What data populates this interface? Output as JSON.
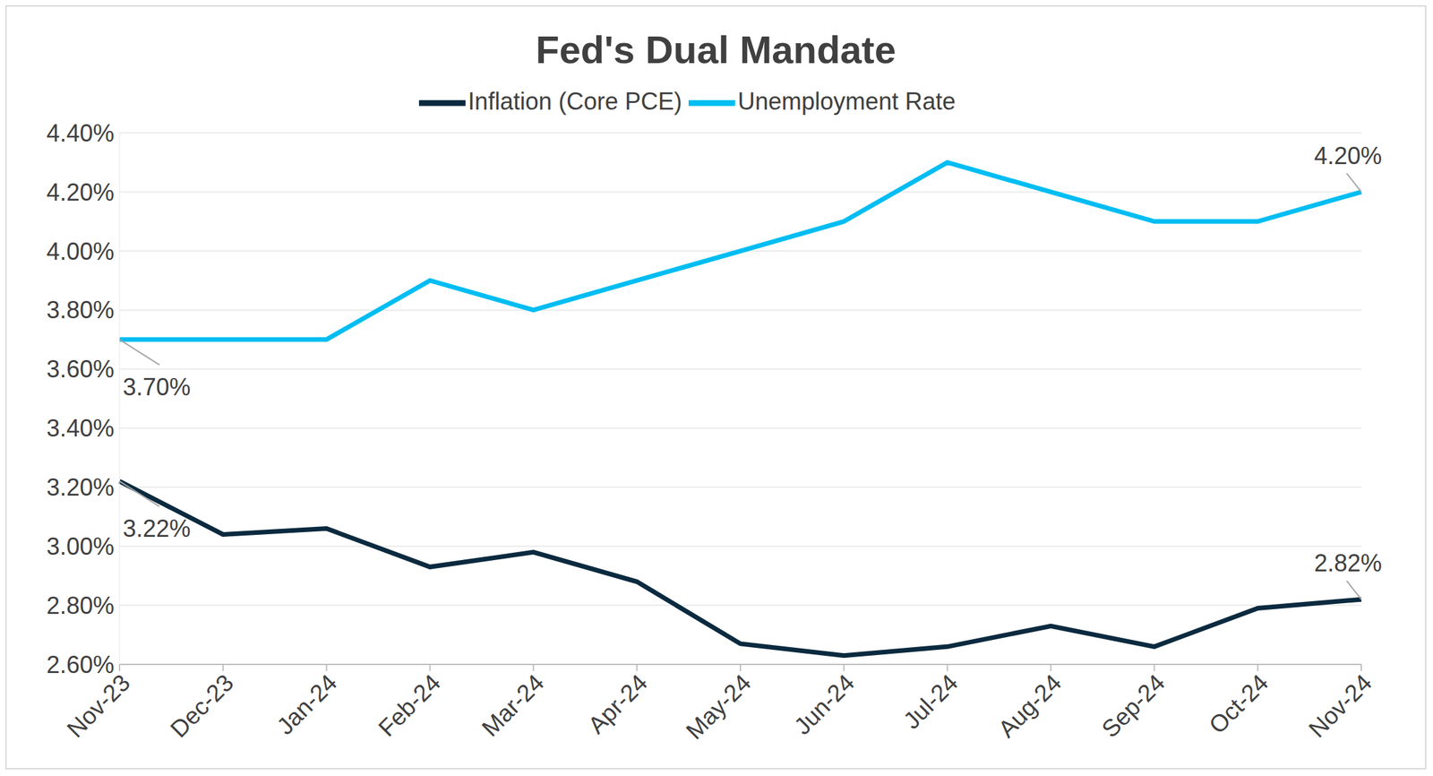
{
  "chart_data": {
    "type": "line",
    "title": "Fed's Dual Mandate",
    "categories": [
      "Nov-23",
      "Dec-23",
      "Jan-24",
      "Feb-24",
      "Mar-24",
      "Apr-24",
      "May-24",
      "Jun-24",
      "Jul-24",
      "Aug-24",
      "Sep-24",
      "Oct-24",
      "Nov-24"
    ],
    "series": [
      {
        "name": "Unemployment Rate",
        "color": "#00bdf2",
        "values": [
          3.7,
          3.7,
          3.7,
          3.9,
          3.8,
          3.9,
          4.0,
          4.1,
          4.3,
          4.2,
          4.1,
          4.1,
          4.2
        ],
        "value_labels": [
          "3.70%",
          null,
          null,
          null,
          null,
          null,
          null,
          null,
          null,
          null,
          null,
          null,
          "4.20%"
        ]
      },
      {
        "name": "Inflation (Core PCE)",
        "color": "#0b2a3f",
        "values": [
          3.22,
          3.04,
          3.06,
          2.93,
          2.98,
          2.88,
          2.67,
          2.63,
          2.66,
          2.73,
          2.66,
          2.79,
          2.82
        ],
        "value_labels": [
          "3.22%",
          null,
          null,
          null,
          null,
          null,
          null,
          null,
          null,
          null,
          null,
          null,
          "2.82%"
        ]
      }
    ],
    "ylim": [
      2.6,
      4.4
    ],
    "yticks": [
      {
        "value": 2.6,
        "label": "2.60%"
      },
      {
        "value": 2.8,
        "label": "2.80%"
      },
      {
        "value": 3.0,
        "label": "3.00%"
      },
      {
        "value": 3.2,
        "label": "3.20%"
      },
      {
        "value": 3.4,
        "label": "3.40%"
      },
      {
        "value": 3.6,
        "label": "3.60%"
      },
      {
        "value": 3.8,
        "label": "3.80%"
      },
      {
        "value": 4.0,
        "label": "4.00%"
      },
      {
        "value": 4.2,
        "label": "4.20%"
      },
      {
        "value": 4.4,
        "label": "4.40%"
      }
    ],
    "grid": true,
    "legend": "top"
  }
}
